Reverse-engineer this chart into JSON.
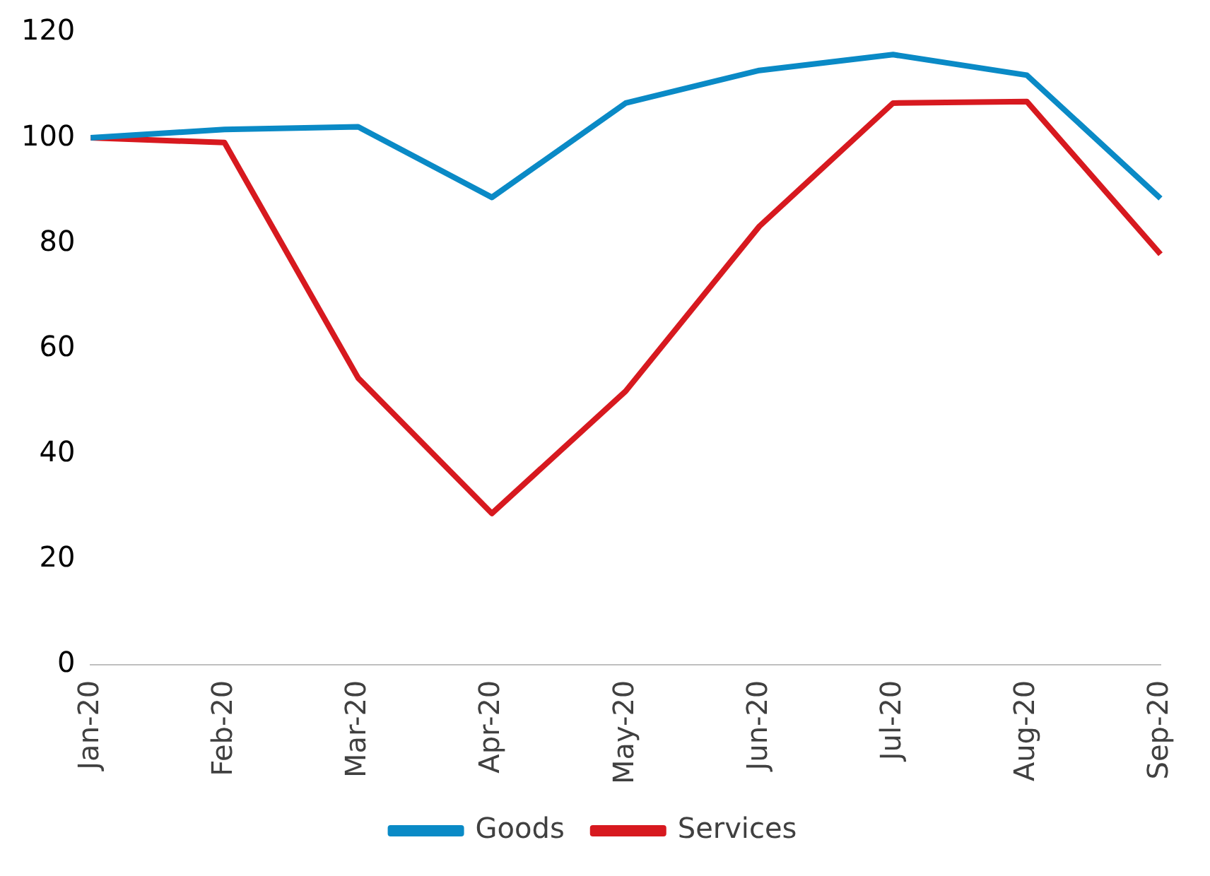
{
  "chart_data": {
    "type": "line",
    "categories": [
      "Jan-20",
      "Feb-20",
      "Mar-20",
      "Apr-20",
      "May-20",
      "Jun-20",
      "Jul-20",
      "Aug-20",
      "Sep-20"
    ],
    "series": [
      {
        "name": "Goods",
        "color": "#0a8ac6",
        "values": [
          100,
          101.6,
          102.1,
          88.7,
          106.6,
          112.8,
          115.8,
          111.9,
          88.5
        ]
      },
      {
        "name": "Services",
        "color": "#d7191f",
        "values": [
          100,
          99.1,
          54.4,
          28.7,
          51.9,
          83.2,
          106.6,
          106.9,
          77.9
        ]
      }
    ],
    "ylim": [
      0,
      120
    ],
    "yticks": [
      0,
      20,
      40,
      60,
      80,
      100,
      120
    ],
    "grid": false,
    "legend": "bottom",
    "marker": "none",
    "line_style": "solid"
  }
}
